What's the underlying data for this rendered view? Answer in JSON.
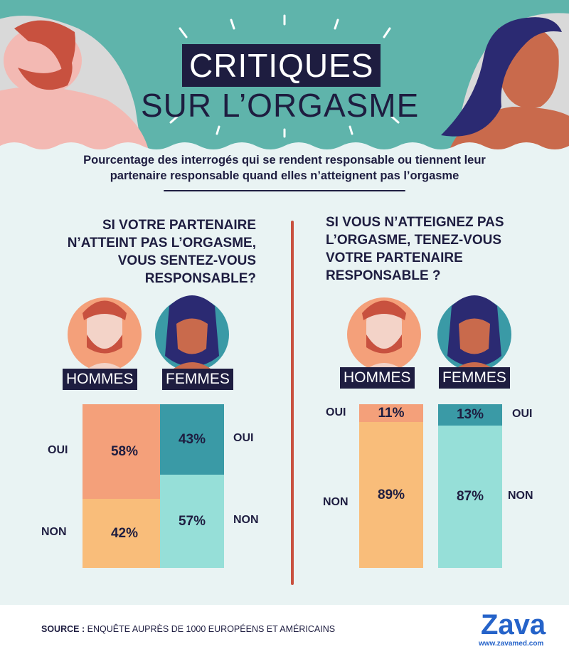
{
  "title_line1": "CRITIQUES",
  "title_line2": "SUR L’ORGASME",
  "subtitle_line1": "Pourcentage des interrogés qui se rendent responsable ou tiennent leur",
  "subtitle_line2": "partenaire responsable quand elles n’atteignent pas l’orgasme",
  "source_label": "SOURCE :",
  "source_text": "ENQUÊTE AUPRÈS DE 1000 EUROPÉENS ET AMÉRICAINS",
  "logo_text": "Zava",
  "logo_url": "www.zavamed.com",
  "colors": {
    "navy": "#1e1d40",
    "teal_header": "#5fb4ab",
    "divider": "#c8513f",
    "men_oui": "#f4a07a",
    "men_non": "#f9bd7a",
    "women_oui": "#3a9aa6",
    "women_non": "#96dfd8"
  },
  "chart_data": [
    {
      "type": "bar",
      "stacked": true,
      "title": [
        "SI VOTRE PARTENAIRE",
        "N’ATTEINT PAS L’ORGASME,",
        "VOUS SENTEZ-VOUS",
        "RESPONSABLE?"
      ],
      "categories": [
        "HOMMES",
        "FEMMES"
      ],
      "series": [
        {
          "name": "OUI",
          "values": [
            58,
            43
          ],
          "labels": [
            "58%",
            "43%"
          ]
        },
        {
          "name": "NON",
          "values": [
            42,
            57
          ],
          "labels": [
            "42%",
            "57%"
          ]
        }
      ]
    },
    {
      "type": "bar",
      "stacked": true,
      "title": [
        "SI VOUS N’ATTEIGNEZ PAS",
        "L’ORGASME, TENEZ-VOUS",
        "VOTRE PARTENAIRE",
        "RESPONSABLE ?"
      ],
      "categories": [
        "HOMMES",
        "FEMMES"
      ],
      "series": [
        {
          "name": "OUI",
          "values": [
            11,
            13
          ],
          "labels": [
            "11%",
            "13%"
          ]
        },
        {
          "name": "NON",
          "values": [
            89,
            87
          ],
          "labels": [
            "89%",
            "87%"
          ]
        }
      ]
    }
  ]
}
